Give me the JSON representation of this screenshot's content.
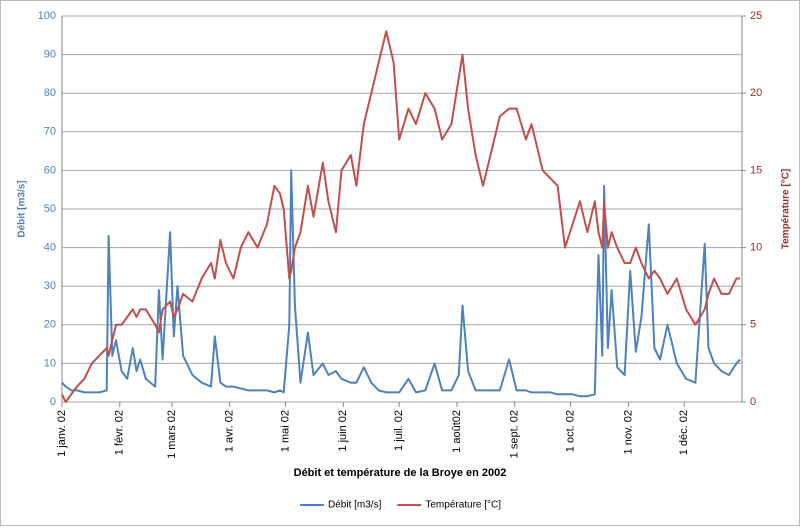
{
  "chart_data": {
    "type": "line",
    "title": "Débit et température de la Broye en  2002",
    "ylabel": "Débit [m3/s]",
    "y2label": "Température [°C]",
    "x": [
      0,
      2,
      5,
      8,
      12,
      16,
      20,
      24,
      25,
      27,
      29,
      32,
      35,
      38,
      40,
      42,
      45,
      50,
      52,
      54,
      58,
      60,
      62,
      65,
      70,
      75,
      80,
      82,
      85,
      88,
      92,
      96,
      100,
      105,
      110,
      114,
      117,
      119,
      122,
      123,
      125,
      128,
      132,
      135,
      140,
      143,
      147,
      150,
      155,
      158,
      162,
      166,
      170,
      174,
      178,
      181,
      186,
      190,
      195,
      200,
      204,
      209,
      213,
      215,
      218,
      222,
      226,
      230,
      235,
      240,
      244,
      249,
      252,
      258,
      262,
      266,
      270,
      274,
      278,
      282,
      286,
      288,
      290,
      291,
      293,
      295,
      298,
      302,
      305,
      308,
      311,
      315,
      318,
      321,
      325,
      330,
      335,
      340,
      345,
      347,
      350,
      354,
      358,
      362,
      364
    ],
    "xlim": [
      0,
      365
    ],
    "xticks": [
      {
        "value": 0,
        "label": "1 janv. 02"
      },
      {
        "value": 31,
        "label": "1 févr. 02"
      },
      {
        "value": 59,
        "label": "1 mars 02"
      },
      {
        "value": 90,
        "label": "1 avr. 02"
      },
      {
        "value": 120,
        "label": "1 mai 02"
      },
      {
        "value": 151,
        "label": "1 juin 02"
      },
      {
        "value": 181,
        "label": "1 juil. 02"
      },
      {
        "value": 212,
        "label": "1 août02"
      },
      {
        "value": 243,
        "label": "1 sept. 02"
      },
      {
        "value": 273,
        "label": "1 oct. 02"
      },
      {
        "value": 304,
        "label": "1 nov. 02"
      },
      {
        "value": 334,
        "label": "1 déc. 02"
      }
    ],
    "ylim": [
      0,
      100
    ],
    "yticks": [
      0,
      10,
      20,
      30,
      40,
      50,
      60,
      70,
      80,
      90,
      100
    ],
    "y2lim": [
      0,
      25
    ],
    "y2ticks": [
      0,
      5,
      10,
      15,
      20,
      25
    ],
    "grid": true,
    "series": [
      {
        "name": "Débit [m3/s]",
        "color": "#4f81bd",
        "values": [
          5,
          4,
          3,
          3,
          2.5,
          2.5,
          2.5,
          3,
          43,
          12,
          16,
          8,
          6,
          14,
          8,
          11,
          6,
          4,
          29,
          11,
          44,
          17,
          30,
          12,
          7,
          5,
          4,
          17,
          5,
          4,
          4,
          3.5,
          3,
          3,
          3,
          2.5,
          3,
          2.5,
          20,
          60,
          25,
          5,
          18,
          7,
          10,
          7,
          8,
          6,
          5,
          5,
          9,
          5,
          3,
          2.5,
          2.5,
          2.5,
          6,
          2.5,
          3,
          10,
          3,
          3,
          7,
          25,
          8,
          3,
          3,
          3,
          3,
          11,
          3,
          3,
          2.5,
          2.5,
          2.5,
          2,
          2,
          2,
          1.5,
          1.5,
          2,
          38,
          12,
          56,
          14,
          29,
          9,
          7,
          34,
          13,
          22,
          46,
          14,
          11,
          20,
          10,
          6,
          5,
          41,
          14,
          10,
          8,
          7,
          10,
          11
        ]
      },
      {
        "name": "Température [°C]",
        "color": "#c0504d",
        "axis": "y2",
        "values": [
          0.5,
          0,
          0.5,
          1,
          1.5,
          2.5,
          3,
          3.5,
          3,
          4,
          5,
          5,
          5.5,
          6,
          5.5,
          6,
          6,
          5,
          4.5,
          6,
          6.5,
          5.5,
          6,
          7,
          6.5,
          8,
          9,
          8,
          10.5,
          9,
          8,
          10,
          11,
          10,
          11.5,
          14,
          13.5,
          12.5,
          8,
          8.5,
          10,
          11,
          14,
          12,
          15.5,
          13,
          11,
          15,
          16,
          14,
          18,
          20,
          22,
          24,
          22,
          17,
          19,
          18,
          20,
          19,
          17,
          18,
          21,
          22.5,
          19,
          16,
          14,
          16,
          18.5,
          19,
          19,
          17,
          18,
          15,
          14.5,
          14,
          10,
          11.5,
          13,
          11,
          13,
          11,
          10,
          13,
          10,
          11,
          10,
          9,
          9,
          10,
          9,
          8,
          8.5,
          8,
          7,
          8,
          6,
          5,
          6,
          7,
          8,
          7,
          7,
          8,
          8
        ]
      }
    ]
  }
}
